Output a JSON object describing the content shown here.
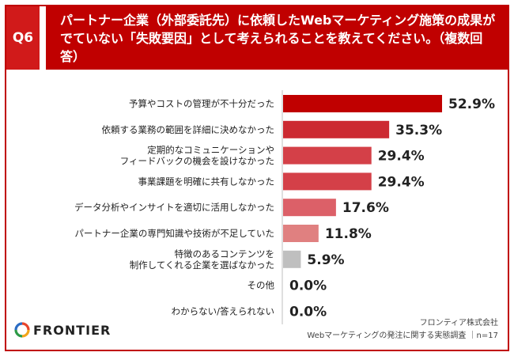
{
  "header": {
    "qnum": "Q6",
    "question": "パートナー企業（外部委託先）に依頼したWebマーケティング施策の成果がでていない「失敗要因」として考えられることを教えてください。（複数回答）"
  },
  "chart_data": {
    "type": "bar",
    "orientation": "horizontal",
    "categories": [
      [
        "予算やコストの管理が不十分だった"
      ],
      [
        "依頼する業務の範囲を詳細に決めなかった"
      ],
      [
        "定期的なコミュニケーションや",
        "フィードバックの機会を設けなかった"
      ],
      [
        "事業課題を明確に共有しなかった"
      ],
      [
        "データ分析やインサイトを適切に活用しなかった"
      ],
      [
        "パートナー企業の専門知識や技術が不足していた"
      ],
      [
        "特徴のあるコンテンツを",
        "制作してくれる企業を選ばなかった"
      ],
      [
        "その他"
      ],
      [
        "わからない/答えられない"
      ]
    ],
    "values": [
      52.9,
      35.3,
      29.4,
      29.4,
      17.6,
      11.8,
      5.9,
      0.0,
      0.0
    ],
    "value_labels": [
      "52.9%",
      "35.3%",
      "29.4%",
      "29.4%",
      "17.6%",
      "11.8%",
      "5.9%",
      "0.0%",
      "0.0%"
    ],
    "bar_colors": [
      "#c00000",
      "#cc2a32",
      "#d44048",
      "#d44048",
      "#dc6068",
      "#e08080",
      "#bfbfbf",
      "#bfbfbf",
      "#bfbfbf"
    ],
    "xlim": [
      0,
      60
    ]
  },
  "footer": {
    "logo_text": "FRONTIER",
    "source_line1": "フロンティア株式会社",
    "source_line2": "Webマーケティングの発注に関する実態調査 ｜n=17"
  }
}
